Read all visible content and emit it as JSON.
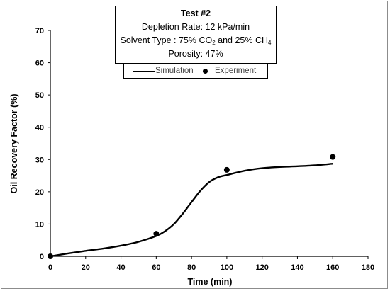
{
  "chart_data": {
    "type": "line",
    "xlabel": "Time (min)",
    "ylabel": "Oil Recovery Factor (%)",
    "xlim": [
      0,
      180
    ],
    "ylim": [
      0,
      70
    ],
    "xticks": [
      0,
      20,
      40,
      60,
      80,
      100,
      120,
      140,
      160,
      180
    ],
    "yticks": [
      0,
      10,
      20,
      30,
      40,
      50,
      60,
      70
    ],
    "grid": false,
    "legend_position": "top-center",
    "series": [
      {
        "name": "Simulation",
        "style": "smooth-line",
        "color": "#000000",
        "x": [
          0,
          10,
          20,
          30,
          40,
          50,
          60,
          65,
          70,
          75,
          80,
          85,
          90,
          95,
          100,
          110,
          120,
          130,
          140,
          150,
          160
        ],
        "y": [
          0,
          0.9,
          1.7,
          2.4,
          3.3,
          4.5,
          6.3,
          7.8,
          10.0,
          13.2,
          16.8,
          20.3,
          23.0,
          24.5,
          25.2,
          26.5,
          27.3,
          27.7,
          27.9,
          28.2,
          28.7
        ]
      },
      {
        "name": "Experiment",
        "style": "markers",
        "color": "#000000",
        "x": [
          0,
          60,
          100,
          160
        ],
        "y": [
          0,
          7,
          26.8,
          30.8
        ]
      }
    ],
    "info_box": {
      "title": "Test #2",
      "depletion_rate": "Depletion Rate: 12 kPa/min",
      "solvent_prefix": "Solvent Type : 75% CO",
      "solvent_sub1": "2",
      "solvent_mid": " and 25% CH",
      "solvent_sub2": "4",
      "porosity": "Porosity: 47%"
    },
    "legend": {
      "simulation_label": "Simulation",
      "experiment_label": "Experiment"
    }
  }
}
